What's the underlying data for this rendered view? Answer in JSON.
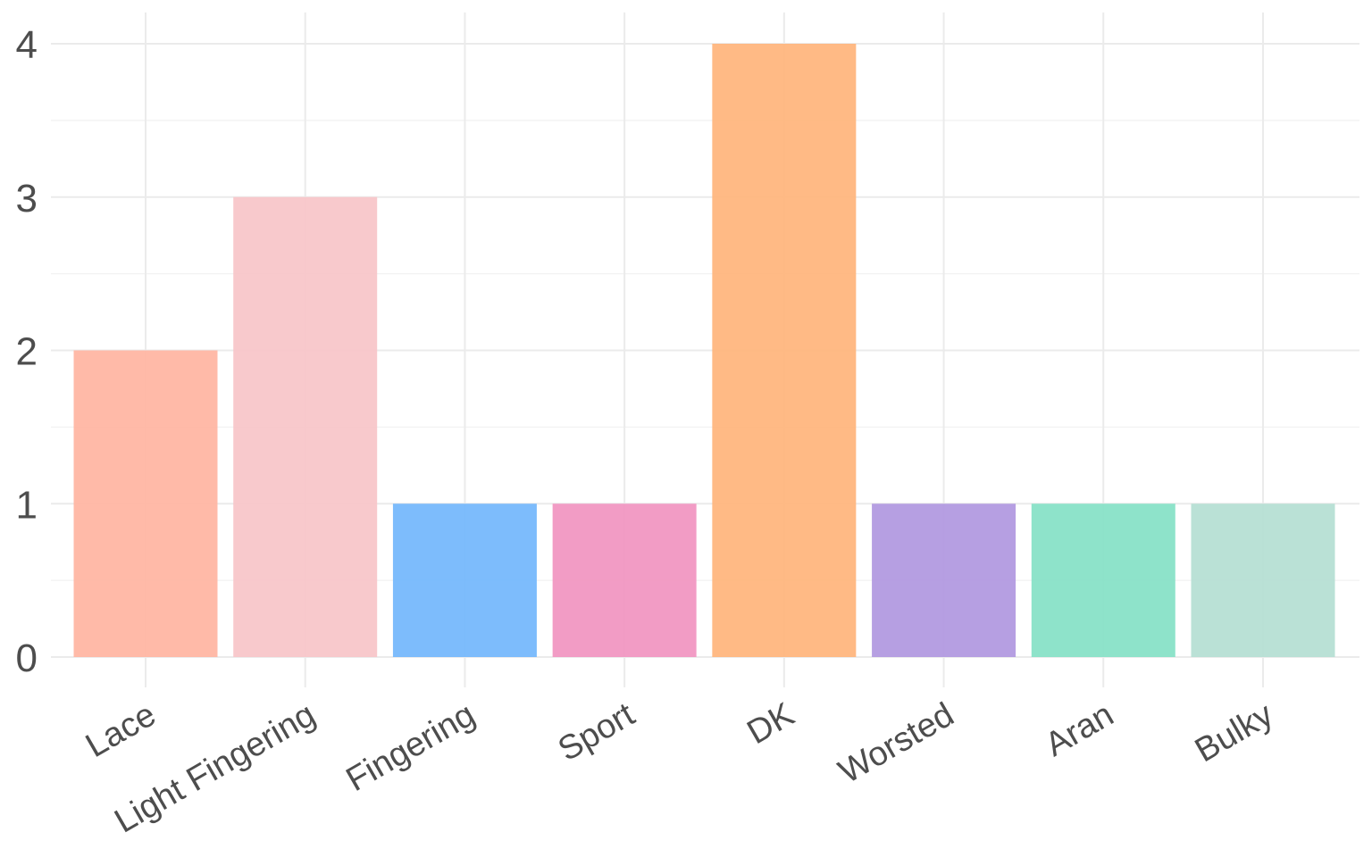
{
  "chart_data": {
    "type": "bar",
    "title": "",
    "xlabel": "",
    "ylabel": "",
    "categories": [
      "Lace",
      "Light Fingering",
      "Fingering",
      "Sport",
      "DK",
      "Worsted",
      "Aran",
      "Bulky"
    ],
    "values": [
      2,
      3,
      1,
      1,
      4,
      1,
      1,
      1
    ],
    "colors": [
      "#ffb4a1",
      "#f7c4c8",
      "#72b6fc",
      "#f194c0",
      "#ffb47b",
      "#b097df",
      "#84e1c5",
      "#b4ded2"
    ],
    "ylim": [
      0,
      4.2
    ],
    "yticks": [
      0,
      1,
      2,
      3,
      4
    ],
    "grid": true,
    "legend": "none"
  }
}
